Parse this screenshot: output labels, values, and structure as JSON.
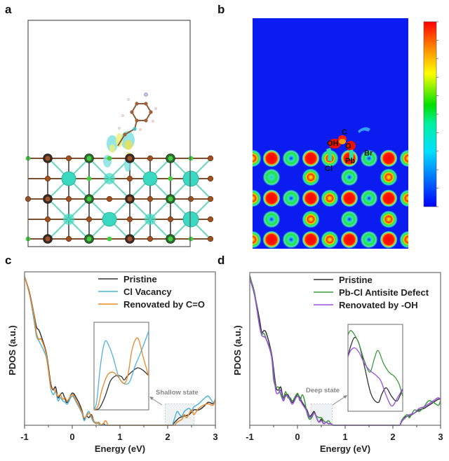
{
  "panels": {
    "a": {
      "letter": "a",
      "description": "Charge density difference of molecule adsorbed on perovskite surface slab"
    },
    "b": {
      "letter": "b",
      "description": "Electron localization function contour map",
      "atom_labels": [
        "C",
        "OH",
        "O",
        "Br",
        "Pb",
        "Cl"
      ]
    },
    "c": {
      "letter": "c"
    },
    "d": {
      "letter": "d"
    }
  },
  "colors": {
    "pristine": "#333333",
    "cl_vacancy": "#4fb3d9",
    "renovated_co": "#e8892a",
    "antisite": "#3c9a3c",
    "renovated_oh": "#9b4fe0",
    "map_bg": "#0a1cf0",
    "cube_border": "#555555"
  },
  "colorbar": {
    "ticks": 11,
    "colors": [
      "#0000ff",
      "#00a0ff",
      "#00ffdd",
      "#00e000",
      "#a0e000",
      "#ffff00",
      "#ffa000",
      "#ff3000",
      "#ff0000"
    ]
  },
  "chart_data": [
    {
      "type": "line",
      "panel": "c",
      "title": "",
      "xlabel": "Energy (eV)",
      "ylabel": "PDOS (a.u.)",
      "xlim": [
        -1,
        3
      ],
      "ylim": [
        0,
        1
      ],
      "xticks": [
        -1,
        0,
        1,
        2,
        3
      ],
      "xtick_labels": [
        "-1",
        "0",
        "1",
        "2",
        "3"
      ],
      "legend_position": "top-right",
      "annotation": "Shallow state",
      "highlight_region": {
        "x": [
          1.95,
          2.55
        ],
        "y": [
          0,
          0.14
        ]
      },
      "series": [
        {
          "name": "Pristine",
          "color_key": "pristine",
          "x": [
            -1,
            -0.9,
            -0.8,
            -0.75,
            -0.7,
            -0.65,
            -0.55,
            -0.5,
            -0.45,
            -0.4,
            -0.35,
            -0.3,
            -0.25,
            -0.2,
            -0.15,
            -0.1,
            0,
            0.1,
            0.2,
            0.25,
            0.3,
            0.35,
            0.4,
            0.45,
            0.5,
            0.55,
            0.6,
            0.65,
            0.7,
            0.8,
            2.1,
            2.15,
            2.25,
            2.35,
            2.45,
            2.55,
            2.65,
            2.75,
            2.85,
            2.95,
            3
          ],
          "y": [
            0.97,
            0.87,
            0.72,
            0.64,
            0.62,
            0.58,
            0.48,
            0.38,
            0.27,
            0.23,
            0.25,
            0.18,
            0.2,
            0.21,
            0.17,
            0.15,
            0.21,
            0.17,
            0.1,
            0.04,
            0.06,
            0.05,
            0.07,
            0.03,
            0.01,
            0.02,
            0.0,
            0.01,
            0.0,
            0.0,
            0.0,
            0.02,
            0.05,
            0.06,
            0.07,
            0.1,
            0.1,
            0.12,
            0.15,
            0.14,
            0.16
          ]
        },
        {
          "name": "Cl Vacancy",
          "color_key": "cl_vacancy",
          "x": [
            -1,
            -0.9,
            -0.8,
            -0.75,
            -0.7,
            -0.65,
            -0.55,
            -0.5,
            -0.45,
            -0.4,
            -0.35,
            -0.3,
            -0.25,
            -0.2,
            -0.15,
            -0.1,
            0,
            0.1,
            0.2,
            0.25,
            0.3,
            0.35,
            0.4,
            0.45,
            0.5,
            0.55,
            0.6,
            0.65,
            0.7,
            2.1,
            2.15,
            2.2,
            2.25,
            2.3,
            2.35,
            2.45,
            2.5,
            2.55,
            2.65,
            2.75,
            2.85,
            2.95,
            3
          ],
          "y": [
            0.97,
            0.86,
            0.68,
            0.58,
            0.55,
            0.52,
            0.45,
            0.36,
            0.24,
            0.2,
            0.22,
            0.16,
            0.18,
            0.16,
            0.15,
            0.14,
            0.19,
            0.14,
            0.08,
            0.03,
            0.07,
            0.09,
            0.05,
            0.02,
            0.02,
            0.01,
            0.0,
            0.0,
            0.0,
            0.0,
            0.05,
            0.09,
            0.07,
            0.06,
            0.09,
            0.11,
            0.09,
            0.12,
            0.14,
            0.17,
            0.19,
            0.15,
            0.17
          ]
        },
        {
          "name": "Renovated by C=O",
          "color_key": "renovated_co",
          "x": [
            -1,
            -0.9,
            -0.8,
            -0.75,
            -0.7,
            -0.65,
            -0.55,
            -0.5,
            -0.45,
            -0.4,
            -0.35,
            -0.3,
            -0.25,
            -0.2,
            -0.15,
            -0.1,
            0,
            0.1,
            0.2,
            0.25,
            0.3,
            0.35,
            0.4,
            0.45,
            0.5,
            0.55,
            0.6,
            0.65,
            0.7,
            0.75,
            2.15,
            2.2,
            2.3,
            2.35,
            2.4,
            2.5,
            2.55,
            2.65,
            2.75,
            2.85,
            2.95,
            3
          ],
          "y": [
            0.97,
            0.86,
            0.71,
            0.6,
            0.56,
            0.56,
            0.47,
            0.36,
            0.25,
            0.24,
            0.22,
            0.19,
            0.2,
            0.17,
            0.18,
            0.16,
            0.2,
            0.15,
            0.09,
            0.05,
            0.06,
            0.08,
            0.06,
            0.03,
            0.01,
            0.02,
            0.0,
            0.01,
            0.03,
            0.0,
            0.0,
            0.02,
            0.04,
            0.07,
            0.05,
            0.1,
            0.07,
            0.11,
            0.13,
            0.14,
            0.13,
            0.17
          ]
        }
      ],
      "inset": {
        "series": [
          {
            "name": "Pristine",
            "color_key": "pristine",
            "x": [
              0,
              0.1,
              0.2,
              0.3,
              0.4,
              0.5,
              0.55,
              0.6,
              0.7,
              0.8,
              0.9,
              1.0
            ],
            "y": [
              0.0,
              0.02,
              0.15,
              0.33,
              0.39,
              0.38,
              0.34,
              0.38,
              0.44,
              0.48,
              0.45,
              0.39
            ]
          },
          {
            "name": "Cl Vacancy",
            "color_key": "cl_vacancy",
            "x": [
              0,
              0.05,
              0.12,
              0.2,
              0.28,
              0.35,
              0.45,
              0.55,
              0.65,
              0.75,
              0.85,
              1.0
            ],
            "y": [
              0.0,
              0.1,
              0.52,
              0.78,
              0.72,
              0.6,
              0.38,
              0.3,
              0.32,
              0.5,
              0.65,
              0.9
            ]
          },
          {
            "name": "Renovated by C=O",
            "color_key": "renovated_co",
            "x": [
              0,
              0.07,
              0.15,
              0.25,
              0.35,
              0.45,
              0.55,
              0.62,
              0.7,
              0.8,
              0.9,
              1.0
            ],
            "y": [
              0.0,
              0.04,
              0.24,
              0.4,
              0.43,
              0.37,
              0.3,
              0.4,
              0.7,
              0.82,
              0.6,
              0.38
            ]
          }
        ]
      }
    },
    {
      "type": "line",
      "panel": "d",
      "title": "",
      "xlabel": "Energy (eV)",
      "ylabel": "PDOS (a.u.)",
      "xlim": [
        -1,
        3
      ],
      "ylim": [
        0,
        1
      ],
      "xticks": [
        -1,
        0,
        1,
        2,
        3
      ],
      "xtick_labels": [
        "-1",
        "0",
        "1",
        "2",
        "3"
      ],
      "legend_position": "top-right",
      "annotation": "Deep state",
      "highlight_region": {
        "x": [
          0.28,
          0.73
        ],
        "y": [
          0,
          0.14
        ]
      },
      "series": [
        {
          "name": "Pristine",
          "color_key": "pristine",
          "x": [
            -1,
            -0.9,
            -0.8,
            -0.75,
            -0.7,
            -0.65,
            -0.55,
            -0.5,
            -0.45,
            -0.4,
            -0.35,
            -0.3,
            -0.25,
            -0.2,
            -0.15,
            -0.1,
            0,
            0.1,
            0.2,
            0.25,
            0.3,
            0.35,
            0.4,
            0.45,
            0.5,
            0.55,
            0.6,
            0.65,
            0.7,
            0.75,
            2.15,
            2.2,
            2.3,
            2.35,
            2.45,
            2.55,
            2.65,
            2.75,
            2.85,
            2.95,
            3
          ],
          "y": [
            0.98,
            0.86,
            0.7,
            0.61,
            0.62,
            0.6,
            0.48,
            0.37,
            0.25,
            0.23,
            0.25,
            0.18,
            0.2,
            0.2,
            0.17,
            0.15,
            0.2,
            0.15,
            0.1,
            0.06,
            0.07,
            0.09,
            0.05,
            0.02,
            0.04,
            0.01,
            0.02,
            0.01,
            0.01,
            0.0,
            0.0,
            0.04,
            0.06,
            0.06,
            0.08,
            0.1,
            0.11,
            0.13,
            0.15,
            0.17,
            0.17
          ]
        },
        {
          "name": "Pb-Cl Antisite Defect",
          "color_key": "antisite",
          "x": [
            -1,
            -0.9,
            -0.8,
            -0.75,
            -0.7,
            -0.65,
            -0.55,
            -0.5,
            -0.45,
            -0.4,
            -0.35,
            -0.3,
            -0.25,
            -0.2,
            -0.15,
            -0.1,
            0,
            0.05,
            0.1,
            0.15,
            0.2,
            0.25,
            0.3,
            0.35,
            0.4,
            0.45,
            0.5,
            0.55,
            0.6,
            0.65,
            0.7,
            0.75,
            2.15,
            2.2,
            2.3,
            2.35,
            2.45,
            2.55,
            2.65,
            2.75,
            2.85,
            2.95,
            3
          ],
          "y": [
            0.97,
            0.87,
            0.66,
            0.6,
            0.6,
            0.56,
            0.47,
            0.3,
            0.25,
            0.25,
            0.2,
            0.17,
            0.22,
            0.18,
            0.18,
            0.16,
            0.21,
            0.16,
            0.2,
            0.16,
            0.08,
            0.04,
            0.05,
            0.08,
            0.06,
            0.05,
            0.05,
            0.03,
            0.02,
            0.03,
            0.01,
            0.0,
            0.0,
            0.04,
            0.07,
            0.05,
            0.1,
            0.09,
            0.12,
            0.16,
            0.15,
            0.13,
            0.16
          ]
        },
        {
          "name": "Renovated by -OH",
          "color_key": "renovated_oh",
          "x": [
            -1,
            -0.9,
            -0.8,
            -0.75,
            -0.7,
            -0.65,
            -0.55,
            -0.5,
            -0.45,
            -0.4,
            -0.35,
            -0.3,
            -0.25,
            -0.2,
            -0.15,
            -0.1,
            0,
            0.1,
            0.2,
            0.25,
            0.3,
            0.35,
            0.4,
            0.45,
            0.5,
            0.55,
            0.6,
            0.65,
            0.7,
            0.75,
            2.15,
            2.2,
            2.3,
            2.35,
            2.45,
            2.55,
            2.65,
            2.75,
            2.85,
            2.95,
            3
          ],
          "y": [
            0.96,
            0.85,
            0.66,
            0.59,
            0.58,
            0.56,
            0.46,
            0.34,
            0.22,
            0.21,
            0.23,
            0.16,
            0.19,
            0.19,
            0.16,
            0.14,
            0.19,
            0.14,
            0.09,
            0.05,
            0.06,
            0.08,
            0.05,
            0.02,
            0.03,
            0.01,
            0.02,
            0.01,
            0.01,
            0.0,
            0.0,
            0.03,
            0.06,
            0.07,
            0.08,
            0.11,
            0.12,
            0.14,
            0.16,
            0.18,
            0.17
          ]
        }
      ],
      "inset": {
        "series": [
          {
            "name": "Pristine",
            "color_key": "pristine",
            "x": [
              0,
              0.05,
              0.12,
              0.2,
              0.3,
              0.42,
              0.55,
              0.62,
              0.7,
              0.8,
              0.9,
              1.0
            ],
            "y": [
              0.63,
              0.75,
              0.85,
              0.78,
              0.52,
              0.2,
              0.1,
              0.2,
              0.27,
              0.17,
              0.12,
              0.26
            ]
          },
          {
            "name": "Pb-Cl Antisite Defect",
            "color_key": "antisite",
            "x": [
              0,
              0.05,
              0.12,
              0.2,
              0.3,
              0.4,
              0.48,
              0.55,
              0.65,
              0.75,
              0.85,
              0.93,
              1.0
            ],
            "y": [
              0.88,
              0.93,
              0.88,
              0.78,
              0.58,
              0.45,
              0.6,
              0.7,
              0.55,
              0.45,
              0.4,
              0.32,
              0.17
            ]
          },
          {
            "name": "Renovated by -OH",
            "color_key": "renovated_oh",
            "x": [
              0,
              0.05,
              0.12,
              0.2,
              0.3,
              0.4,
              0.5,
              0.6,
              0.7,
              0.8,
              0.9,
              1.0
            ],
            "y": [
              0.63,
              0.7,
              0.73,
              0.68,
              0.55,
              0.47,
              0.42,
              0.35,
              0.18,
              0.06,
              0.15,
              0.26
            ]
          }
        ]
      }
    }
  ]
}
